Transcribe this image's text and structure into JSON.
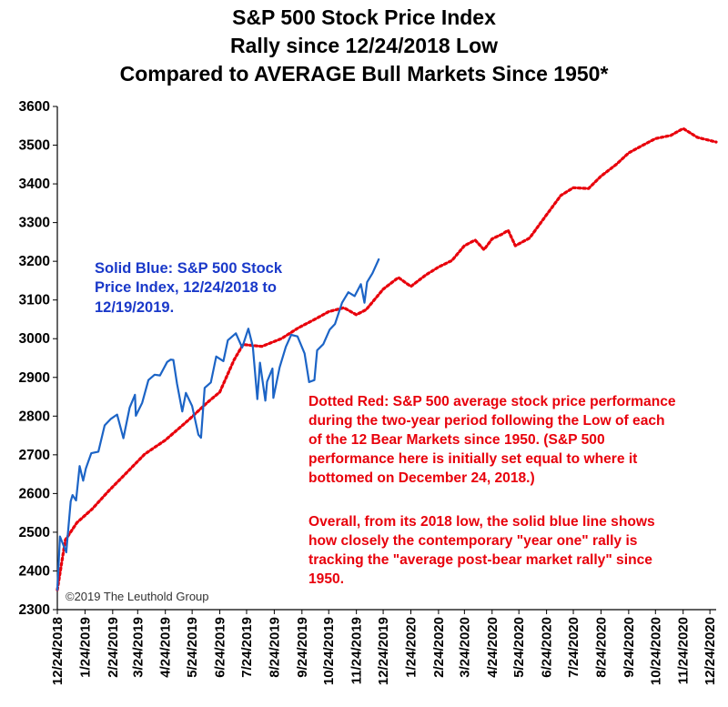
{
  "chart_data": {
    "type": "line",
    "title_lines": [
      "S&P 500 Stock Price Index",
      "Rally since 12/24/2018 Low",
      "Compared to AVERAGE Bull Markets Since 1950*"
    ],
    "ylim": [
      2300,
      3600
    ],
    "yticks": [
      2300,
      2400,
      2500,
      2600,
      2700,
      2800,
      2900,
      3000,
      3100,
      3200,
      3300,
      3400,
      3500,
      3600
    ],
    "x_start": "2018-12-24",
    "x_end": "2020-12-31",
    "xticks": [
      "12/24/2018",
      "1/24/2019",
      "2/24/2019",
      "3/24/2019",
      "4/24/2019",
      "5/24/2019",
      "6/24/2019",
      "7/24/2019",
      "8/24/2019",
      "9/24/2019",
      "10/24/2019",
      "11/24/2019",
      "12/24/2019",
      "1/24/2020",
      "2/24/2020",
      "3/24/2020",
      "4/24/2020",
      "5/24/2020",
      "6/24/2020",
      "7/24/2020",
      "8/24/2020",
      "9/24/2020",
      "10/24/2020",
      "11/24/2020",
      "12/24/2020"
    ],
    "grid": false,
    "series": [
      {
        "color": "#1c64c6",
        "style": "solid",
        "points": [
          [
            "2018-12-24",
            2351
          ],
          [
            "2018-12-27",
            2489
          ],
          [
            "2019-01-03",
            2448
          ],
          [
            "2019-01-08",
            2580
          ],
          [
            "2019-01-10",
            2596
          ],
          [
            "2019-01-14",
            2582
          ],
          [
            "2019-01-18",
            2671
          ],
          [
            "2019-01-22",
            2633
          ],
          [
            "2019-01-25",
            2665
          ],
          [
            "2019-01-31",
            2704
          ],
          [
            "2019-02-08",
            2708
          ],
          [
            "2019-02-15",
            2776
          ],
          [
            "2019-02-22",
            2793
          ],
          [
            "2019-03-01",
            2804
          ],
          [
            "2019-03-08",
            2743
          ],
          [
            "2019-03-15",
            2822
          ],
          [
            "2019-03-21",
            2855
          ],
          [
            "2019-03-22",
            2801
          ],
          [
            "2019-03-29",
            2834
          ],
          [
            "2019-04-05",
            2893
          ],
          [
            "2019-04-12",
            2907
          ],
          [
            "2019-04-18",
            2905
          ],
          [
            "2019-04-26",
            2940
          ],
          [
            "2019-04-30",
            2946
          ],
          [
            "2019-05-03",
            2945
          ],
          [
            "2019-05-07",
            2884
          ],
          [
            "2019-05-13",
            2812
          ],
          [
            "2019-05-17",
            2860
          ],
          [
            "2019-05-24",
            2826
          ],
          [
            "2019-05-31",
            2752
          ],
          [
            "2019-06-03",
            2744
          ],
          [
            "2019-06-07",
            2873
          ],
          [
            "2019-06-14",
            2887
          ],
          [
            "2019-06-20",
            2954
          ],
          [
            "2019-06-28",
            2942
          ],
          [
            "2019-07-03",
            2996
          ],
          [
            "2019-07-12",
            3014
          ],
          [
            "2019-07-19",
            2977
          ],
          [
            "2019-07-26",
            3026
          ],
          [
            "2019-07-31",
            2980
          ],
          [
            "2019-08-05",
            2844
          ],
          [
            "2019-08-08",
            2938
          ],
          [
            "2019-08-14",
            2840
          ],
          [
            "2019-08-16",
            2889
          ],
          [
            "2019-08-22",
            2923
          ],
          [
            "2019-08-23",
            2847
          ],
          [
            "2019-08-30",
            2926
          ],
          [
            "2019-09-06",
            2979
          ],
          [
            "2019-09-12",
            3010
          ],
          [
            "2019-09-19",
            3006
          ],
          [
            "2019-09-27",
            2962
          ],
          [
            "2019-10-02",
            2888
          ],
          [
            "2019-10-08",
            2893
          ],
          [
            "2019-10-11",
            2970
          ],
          [
            "2019-10-18",
            2986
          ],
          [
            "2019-10-25",
            3023
          ],
          [
            "2019-10-31",
            3038
          ],
          [
            "2019-11-08",
            3093
          ],
          [
            "2019-11-15",
            3120
          ],
          [
            "2019-11-22",
            3110
          ],
          [
            "2019-11-29",
            3141
          ],
          [
            "2019-12-03",
            3093
          ],
          [
            "2019-12-06",
            3146
          ],
          [
            "2019-12-12",
            3169
          ],
          [
            "2019-12-19",
            3205
          ]
        ]
      },
      {
        "color": "#e8000b",
        "style": "dotted",
        "points": [
          [
            "2018-12-24",
            2351
          ],
          [
            "2019-01-02",
            2480
          ],
          [
            "2019-01-15",
            2525
          ],
          [
            "2019-02-01",
            2560
          ],
          [
            "2019-02-20",
            2608
          ],
          [
            "2019-03-10",
            2650
          ],
          [
            "2019-04-01",
            2702
          ],
          [
            "2019-04-24",
            2738
          ],
          [
            "2019-05-20",
            2790
          ],
          [
            "2019-06-10",
            2835
          ],
          [
            "2019-06-24",
            2862
          ],
          [
            "2019-07-10",
            2945
          ],
          [
            "2019-07-20",
            2985
          ],
          [
            "2019-08-10",
            2980
          ],
          [
            "2019-09-01",
            3000
          ],
          [
            "2019-09-20",
            3028
          ],
          [
            "2019-10-10",
            3052
          ],
          [
            "2019-10-24",
            3070
          ],
          [
            "2019-11-10",
            3080
          ],
          [
            "2019-11-24",
            3062
          ],
          [
            "2019-12-05",
            3075
          ],
          [
            "2019-12-24",
            3128
          ],
          [
            "2020-01-10",
            3158
          ],
          [
            "2020-01-24",
            3135
          ],
          [
            "2020-02-10",
            3165
          ],
          [
            "2020-02-24",
            3185
          ],
          [
            "2020-03-10",
            3202
          ],
          [
            "2020-03-24",
            3240
          ],
          [
            "2020-04-05",
            3255
          ],
          [
            "2020-04-15",
            3230
          ],
          [
            "2020-04-24",
            3258
          ],
          [
            "2020-05-05",
            3270
          ],
          [
            "2020-05-12",
            3280
          ],
          [
            "2020-05-20",
            3240
          ],
          [
            "2020-06-05",
            3260
          ],
          [
            "2020-06-24",
            3320
          ],
          [
            "2020-07-10",
            3370
          ],
          [
            "2020-07-24",
            3390
          ],
          [
            "2020-08-10",
            3388
          ],
          [
            "2020-08-24",
            3420
          ],
          [
            "2020-09-10",
            3450
          ],
          [
            "2020-09-24",
            3480
          ],
          [
            "2020-10-10",
            3500
          ],
          [
            "2020-10-24",
            3517
          ],
          [
            "2020-11-10",
            3525
          ],
          [
            "2020-11-24",
            3543
          ],
          [
            "2020-12-10",
            3520
          ],
          [
            "2020-12-24",
            3512
          ],
          [
            "2020-12-31",
            3508
          ]
        ]
      }
    ],
    "annotations": {
      "blue_lines": [
        "Solid Blue: S&P 500 Stock",
        "Price Index, 12/24/2018 to",
        "12/19/2019."
      ],
      "red_para1": [
        "Dotted Red: S&P 500 average stock price performance",
        "during the two-year period following the Low of each",
        "of the 12 Bear Markets since 1950. (S&P 500",
        "performance here is initially set equal to where it",
        "bottomed on December 24, 2018.)"
      ],
      "red_para2": [
        "Overall, from its 2018 low, the solid blue line shows",
        "how closely the contemporary \"year one\" rally is",
        "tracking the \"average post-bear market rally\" since",
        "1950."
      ]
    },
    "copyright": "©2019 The Leuthold Group"
  }
}
